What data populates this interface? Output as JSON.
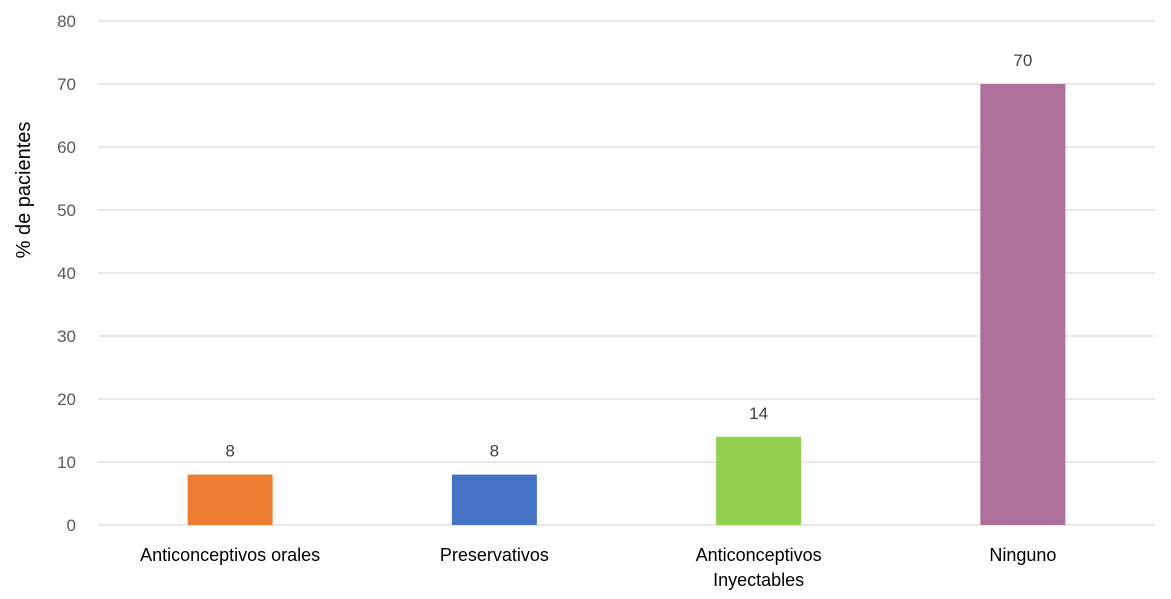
{
  "chart_data": {
    "type": "bar",
    "title": "",
    "xlabel": "",
    "ylabel": "% de pacientes",
    "ylim": [
      0,
      80
    ],
    "yticks": [
      0,
      10,
      20,
      30,
      40,
      50,
      60,
      70,
      80
    ],
    "grid": true,
    "legend": "none",
    "categories": [
      [
        "Anticonceptivos orales"
      ],
      [
        "Preservativos"
      ],
      [
        "Anticonceptivos",
        "Inyectables"
      ],
      [
        "Ninguno"
      ]
    ],
    "values": [
      8,
      8,
      14,
      70
    ],
    "colors": [
      "#ED7D31",
      "#4472C4",
      "#92D050",
      "#AE6F9A"
    ],
    "data_labels": [
      "8",
      "8",
      "14",
      "70"
    ]
  }
}
